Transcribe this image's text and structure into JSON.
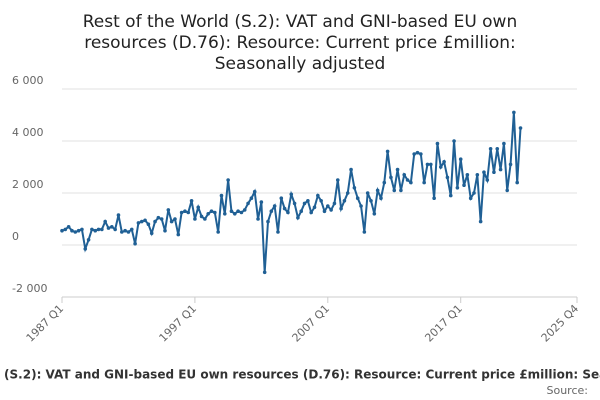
{
  "chart_data": {
    "type": "line",
    "title": "Rest of the World (S.2): VAT and GNI-based EU own resources (D.76): Resource: Current price £million: Seasonally adjusted",
    "source": "Source:",
    "x": [
      1987,
      1987.25,
      1987.5,
      1987.75,
      1988,
      1988.25,
      1988.5,
      1988.75,
      1989,
      1989.25,
      1989.5,
      1989.75,
      1990,
      1990.25,
      1990.5,
      1990.75,
      1991,
      1991.25,
      1991.5,
      1991.75,
      1992,
      1992.25,
      1992.5,
      1992.75,
      1993,
      1993.25,
      1993.5,
      1993.75,
      1994,
      1994.25,
      1994.5,
      1994.75,
      1995,
      1995.25,
      1995.5,
      1995.75,
      1996,
      1996.25,
      1996.5,
      1996.75,
      1997,
      1997.25,
      1997.5,
      1997.75,
      1998,
      1998.25,
      1998.5,
      1998.75,
      1999,
      1999.25,
      1999.5,
      1999.75,
      2000,
      2000.25,
      2000.5,
      2000.75,
      2001,
      2001.25,
      2001.5,
      2001.75,
      2002,
      2002.25,
      2002.5,
      2002.75,
      2003,
      2003.25,
      2003.5,
      2003.75,
      2004,
      2004.25,
      2004.5,
      2004.75,
      2005,
      2005.25,
      2005.5,
      2005.75,
      2006,
      2006.25,
      2006.5,
      2006.75,
      2007,
      2007.25,
      2007.5,
      2007.75,
      2008,
      2008.25,
      2008.5,
      2008.75,
      2009,
      2009.25,
      2009.5,
      2009.75,
      2010,
      2010.25,
      2010.5,
      2010.75,
      2011,
      2011.25,
      2011.5,
      2011.75,
      2012,
      2012.25,
      2012.5,
      2012.75,
      2013,
      2013.25,
      2013.5,
      2013.75,
      2014,
      2014.25,
      2014.5,
      2014.75,
      2015,
      2015.25,
      2015.5,
      2015.75,
      2016,
      2016.25,
      2016.5,
      2016.75,
      2017,
      2017.25,
      2017.5,
      2017.75,
      2018,
      2018.25,
      2018.5,
      2018.75,
      2019,
      2019.25,
      2019.5,
      2019.75,
      2020,
      2020.25,
      2020.5,
      2020.75,
      2021,
      2021.25,
      2021.5
    ],
    "series": [
      {
        "name": "Rest of the World (S.2): VAT and GNI-based EU own resources (D.76): Resource: Current price £million: Seasonally adjusted",
        "color": "#206095",
        "values": [
          550,
          600,
          700,
          550,
          500,
          550,
          600,
          -150,
          200,
          600,
          550,
          600,
          600,
          900,
          650,
          700,
          600,
          1150,
          500,
          550,
          500,
          600,
          50,
          850,
          900,
          950,
          800,
          450,
          900,
          1050,
          1000,
          550,
          1350,
          900,
          1000,
          400,
          1250,
          1300,
          1250,
          1700,
          1000,
          1450,
          1100,
          1000,
          1200,
          1300,
          1250,
          500,
          1900,
          1200,
          2500,
          1300,
          1200,
          1300,
          1250,
          1350,
          1600,
          1800,
          2050,
          1000,
          1650,
          -1050,
          900,
          1300,
          1500,
          500,
          1800,
          1400,
          1250,
          1950,
          1600,
          1050,
          1300,
          1600,
          1700,
          1250,
          1450,
          1900,
          1700,
          1300,
          1500,
          1350,
          1600,
          2500,
          1400,
          1700,
          2000,
          2900,
          2200,
          1800,
          1500,
          500,
          2000,
          1700,
          1200,
          2100,
          1800,
          2400,
          3600,
          2600,
          2100,
          2900,
          2100,
          2700,
          2500,
          2400,
          3500,
          3550,
          3500,
          2400,
          3100,
          3100,
          1800,
          3900,
          3000,
          3200,
          2600,
          1900,
          4000,
          2200,
          3300,
          2300,
          2700,
          1800,
          2000,
          2700,
          900,
          2800,
          2500,
          3700,
          2800,
          3700,
          2900,
          3900,
          2100,
          3100,
          5100,
          2400,
          4500
        ]
      }
    ],
    "xlim": [
      1987,
      2025.75
    ],
    "xticks": [
      {
        "value": 1987,
        "label": "1987 Q1"
      },
      {
        "value": 1997,
        "label": "1997 Q1"
      },
      {
        "value": 2007,
        "label": "2007 Q1"
      },
      {
        "value": 2017,
        "label": "2017 Q1"
      },
      {
        "value": 2025.75,
        "label": "2025 Q4"
      }
    ],
    "ylim": [
      -2000,
      6000
    ],
    "yticks": [
      {
        "value": -2000,
        "label": "-2 000"
      },
      0,
      {
        "value": 2000,
        "label": "2 000"
      },
      {
        "value": 4000,
        "label": "4 000"
      },
      {
        "value": 6000,
        "label": "6 000"
      }
    ],
    "grid": true
  }
}
